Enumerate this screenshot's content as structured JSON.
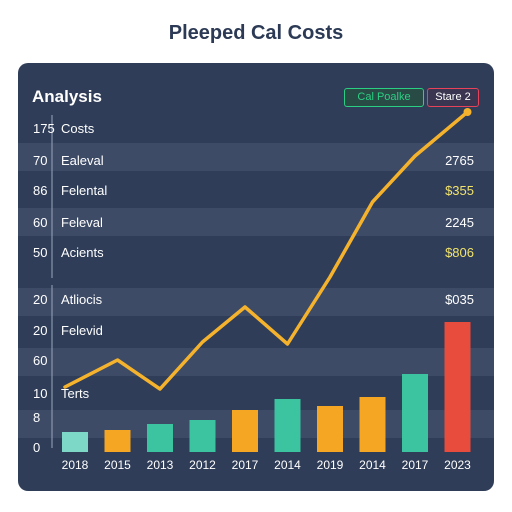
{
  "page": {
    "title": "Pleeped Cal Costs"
  },
  "panel": {
    "title": "Analysis",
    "buttons": {
      "primary_label": "Cal Poalke",
      "secondary_label": "Stare 2"
    }
  },
  "colors": {
    "background": "#2f3d58",
    "band": "#3d4b67",
    "line": "#f5b22c",
    "teal": "#3cc4a0",
    "orange": "#f5a623",
    "red": "#e84c3d",
    "mint": "#7ed8c8",
    "value_yellow": "#f2e36b"
  },
  "chart_data": {
    "type": "bar",
    "title": "Pleeped Cal Costs",
    "xlabel": "",
    "ylabel": "",
    "categories": [
      "2018",
      "2015",
      "2013",
      "2012",
      "2017",
      "2014",
      "2019",
      "2014",
      "2017",
      "2023"
    ],
    "bars": {
      "values": [
        2.0,
        2.2,
        2.8,
        3.2,
        4.2,
        5.3,
        4.6,
        5.5,
        7.8,
        13.0
      ],
      "colors": [
        "#7ed8c8",
        "#f5a623",
        "#3cc4a0",
        "#3cc4a0",
        "#f5a623",
        "#3cc4a0",
        "#f5a623",
        "#f5a623",
        "#3cc4a0",
        "#e84c3d"
      ]
    },
    "line": {
      "values": [
        6.5,
        9.2,
        6.3,
        11.0,
        14.5,
        10.8,
        17.5,
        25.0,
        29.6,
        34.0
      ]
    },
    "row_labels": [
      {
        "num": "175",
        "text": "Costs",
        "value": ""
      },
      {
        "num": "70",
        "text": "Ealeval",
        "value": "2765"
      },
      {
        "num": "86",
        "text": "Felental",
        "value": "$355"
      },
      {
        "num": "60",
        "text": "Feleval",
        "value": "2245"
      },
      {
        "num": "50",
        "text": "Acients",
        "value": "$806"
      },
      {
        "num": "20",
        "text": "Atliocis",
        "value": "$035"
      },
      {
        "num": "20",
        "text": "Felevid",
        "value": ""
      },
      {
        "num": "60",
        "text": "",
        "value": ""
      },
      {
        "num": "10",
        "text": "Terts",
        "value": ""
      },
      {
        "num": "8",
        "text": "",
        "value": ""
      },
      {
        "num": "0",
        "text": "",
        "value": ""
      }
    ],
    "grid": false,
    "legend": "none"
  }
}
